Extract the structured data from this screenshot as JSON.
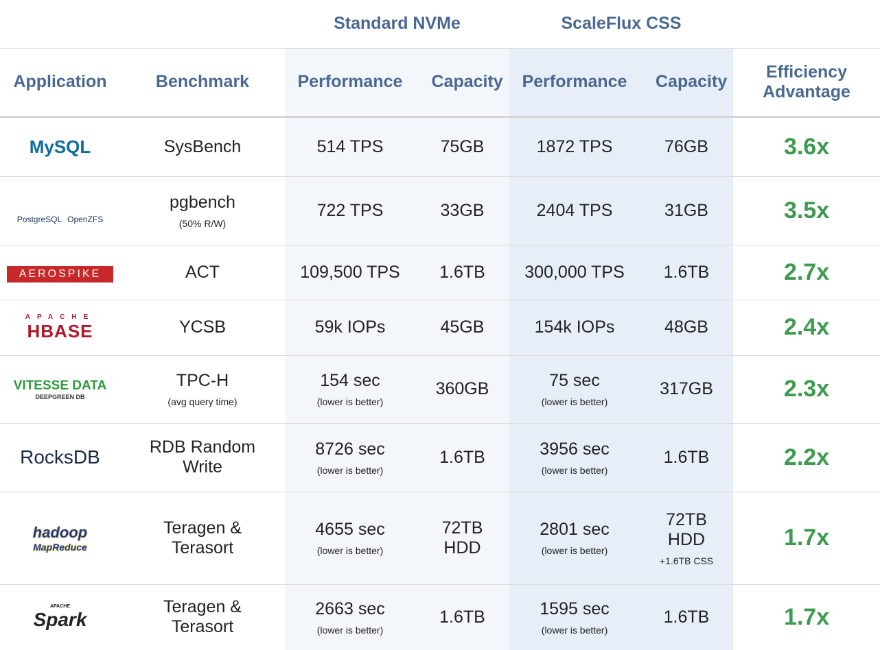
{
  "header": {
    "groups": [
      "Standard NVMe",
      "ScaleFlux CSS"
    ]
  },
  "table": {
    "columns": [
      "Application",
      "Benchmark",
      "Performance",
      "Capacity",
      "Performance",
      "Capacity",
      "Efficiency Advantage"
    ],
    "rows": [
      {
        "logo": [
          "MySQL"
        ],
        "benchmark": "SysBench",
        "nvme_performance": "514 TPS",
        "nvme_capacity": "75GB",
        "css_performance": "1872 TPS",
        "css_capacity": "76GB",
        "advantage": "3.6x"
      },
      {
        "logo": [
          "PostgreSQL",
          "OpenZFS"
        ],
        "benchmark": "pgbench",
        "benchmark_note": "(50% R/W)",
        "nvme_performance": "722 TPS",
        "nvme_capacity": "33GB",
        "css_performance": "2404 TPS",
        "css_capacity": "31GB",
        "advantage": "3.5x"
      },
      {
        "logo": [
          "AEROSPIKE"
        ],
        "benchmark": "ACT",
        "nvme_performance": "109,500 TPS",
        "nvme_capacity": "1.6TB",
        "css_performance": "300,000 TPS",
        "css_capacity": "1.6TB",
        "advantage": "2.7x"
      },
      {
        "logo": [
          "APACHE",
          "HBASE"
        ],
        "benchmark": "YCSB",
        "nvme_performance": "59k IOPs",
        "nvme_capacity": "45GB",
        "css_performance": "154k IOPs",
        "css_capacity": "48GB",
        "advantage": "2.4x"
      },
      {
        "logo": [
          "VITESSE DATA",
          "DEEPGREEN DB"
        ],
        "benchmark": "TPC-H",
        "benchmark_note": "(avg query time)",
        "nvme_performance": "154 sec",
        "nvme_performance_note": "(lower is better)",
        "nvme_capacity": "360GB",
        "css_performance": "75 sec",
        "css_performance_note": "(lower is better)",
        "css_capacity": "317GB",
        "advantage": "2.3x"
      },
      {
        "logo": [
          "RocksDB"
        ],
        "benchmark": "RDB Random Write",
        "nvme_performance": "8726 sec",
        "nvme_performance_note": "(lower is better)",
        "nvme_capacity": "1.6TB",
        "css_performance": "3956 sec",
        "css_performance_note": "(lower is better)",
        "css_capacity": "1.6TB",
        "advantage": "2.2x"
      },
      {
        "logo": [
          "hadoop",
          "MapReduce"
        ],
        "benchmark": "Teragen & Terasort",
        "nvme_performance": "4655 sec",
        "nvme_performance_note": "(lower is better)",
        "nvme_capacity": "72TB HDD",
        "css_performance": "2801 sec",
        "css_performance_note": "(lower is better)",
        "css_capacity": "72TB HDD",
        "css_capacity_note": "+1.6TB CSS",
        "advantage": "1.7x"
      },
      {
        "logo": [
          "APACHE",
          "Spark"
        ],
        "benchmark": "Teragen & Terasort",
        "nvme_performance": "2663 sec",
        "nvme_performance_note": "(lower is better)",
        "nvme_capacity": "1.6TB",
        "css_performance": "1595 sec",
        "css_performance_note": "(lower is better)",
        "css_capacity": "1.6TB",
        "advantage": "1.7x"
      }
    ]
  }
}
